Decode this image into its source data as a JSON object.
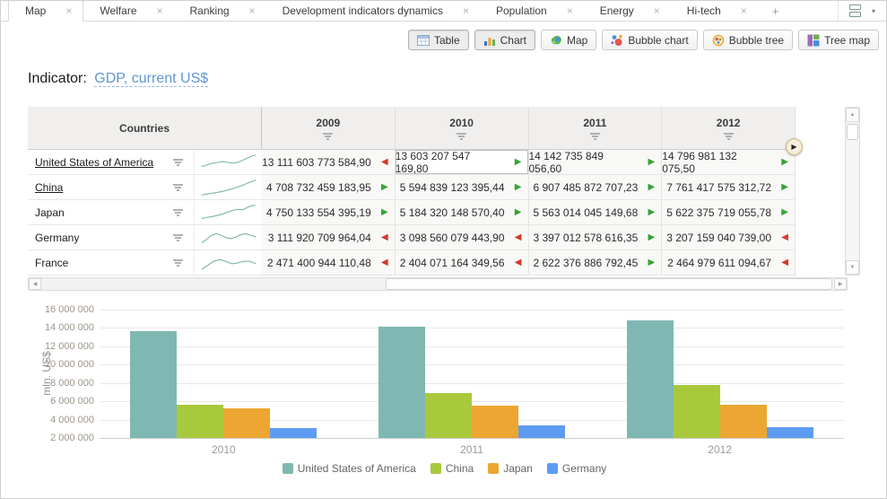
{
  "icons": {
    "close": "×",
    "add": "+",
    "caret": "▾",
    "scroll_up": "▲",
    "scroll_down": "▼",
    "scroll_left": "◀",
    "scroll_right": "▶",
    "trend_up": "▶",
    "trend_down": "◀",
    "expand": "▶"
  },
  "tabs": {
    "items": [
      {
        "label": "Map",
        "active": true
      },
      {
        "label": "Welfare",
        "active": false
      },
      {
        "label": "Ranking",
        "active": false
      },
      {
        "label": "Development indicators dynamics",
        "active": false
      },
      {
        "label": "Population",
        "active": false
      },
      {
        "label": "Energy",
        "active": false
      },
      {
        "label": "Hi-tech",
        "active": false
      }
    ]
  },
  "toolbar": {
    "buttons": [
      {
        "label": "Table",
        "icon": "table-icon",
        "active": true
      },
      {
        "label": "Chart",
        "icon": "chart-icon",
        "active": true
      },
      {
        "label": "Map",
        "icon": "map-icon",
        "active": false
      },
      {
        "label": "Bubble chart",
        "icon": "bubble-chart-icon",
        "active": false
      },
      {
        "label": "Bubble tree",
        "icon": "bubble-tree-icon",
        "active": false
      },
      {
        "label": "Tree map",
        "icon": "tree-map-icon",
        "active": false
      }
    ]
  },
  "header": {
    "indicator_label": "Indicator:",
    "indicator_value": "GDP, current US$"
  },
  "table": {
    "countries_header": "Countries",
    "years": [
      "2009",
      "2010",
      "2011",
      "2012"
    ],
    "selected_cell": {
      "row": 0,
      "year_index": 1
    },
    "rows": [
      {
        "country": "United States of America",
        "underlined": true,
        "spark": [
          17,
          15,
          13,
          12,
          11,
          12,
          13,
          11,
          8,
          5,
          3
        ],
        "values": [
          {
            "text": "13 111 603 773 584,90",
            "trend": "down"
          },
          {
            "text": "13 603 207 547 169,80",
            "trend": "up"
          },
          {
            "text": "14 142 735 849 056,60",
            "trend": "up"
          },
          {
            "text": "14 796 981 132 075,50",
            "trend": "up"
          }
        ]
      },
      {
        "country": "China",
        "underlined": true,
        "spark": [
          21,
          20,
          19,
          18,
          17,
          15.5,
          14,
          12,
          10,
          7.5,
          5,
          3
        ],
        "values": [
          {
            "text": "4 708 732 459 183,95",
            "trend": "up"
          },
          {
            "text": "5 594 839 123 395,44",
            "trend": "up"
          },
          {
            "text": "6 907 485 872 707,23",
            "trend": "up"
          },
          {
            "text": "7 761 417 575 312,72",
            "trend": "up"
          }
        ]
      },
      {
        "country": "Japan",
        "underlined": false,
        "spark": [
          19,
          18,
          17,
          16,
          14.5,
          13,
          11,
          9,
          8,
          8.5,
          6,
          3.5,
          3
        ],
        "values": [
          {
            "text": "4 750 133 554 395,19",
            "trend": "up"
          },
          {
            "text": "5 184 320 148 570,40",
            "trend": "up"
          },
          {
            "text": "5 563 014 045 149,68",
            "trend": "up"
          },
          {
            "text": "5 622 375 719 055,78",
            "trend": "up"
          }
        ]
      },
      {
        "country": "Germany",
        "underlined": false,
        "spark": [
          18,
          14,
          9,
          7,
          9,
          12,
          13,
          11,
          8,
          7,
          9,
          11
        ],
        "values": [
          {
            "text": "3 111 920 709 964,04",
            "trend": "down"
          },
          {
            "text": "3 098 560 079 443,90",
            "trend": "down"
          },
          {
            "text": "3 397 012 578 616,35",
            "trend": "up"
          },
          {
            "text": "3 207 159 040 739,00",
            "trend": "down"
          }
        ]
      },
      {
        "country": "France",
        "underlined": false,
        "spark": [
          20,
          15,
          10,
          8,
          10,
          13,
          12,
          10,
          10,
          13
        ],
        "values": [
          {
            "text": "2 471 400 944 110,48",
            "trend": "down"
          },
          {
            "text": "2 404 071 164 349,56",
            "trend": "down"
          },
          {
            "text": "2 622 376 886 792,45",
            "trend": "up"
          },
          {
            "text": "2 464 979 611 094,67",
            "trend": "down"
          }
        ]
      }
    ]
  },
  "chart_data": {
    "type": "bar",
    "title": "",
    "categories": [
      "2010",
      "2011",
      "2012"
    ],
    "series": [
      {
        "name": "United States of America",
        "color": "#7fb8b2",
        "values": [
          13603207.55,
          14142735.85,
          14796981.13
        ]
      },
      {
        "name": "China",
        "color": "#a9c93d",
        "values": [
          5594839.12,
          6907485.87,
          7761417.58
        ]
      },
      {
        "name": "Japan",
        "color": "#eca631",
        "values": [
          5184320.15,
          5563014.05,
          5622375.72
        ]
      },
      {
        "name": "Germany",
        "color": "#5d9cf2",
        "values": [
          3098560.08,
          3397012.58,
          3207159.04
        ]
      }
    ],
    "unit": "mln US$",
    "xlabel": "",
    "ylabel": "mln. US$",
    "ylim": [
      2000000,
      16000000
    ],
    "yticks": [
      {
        "value": 2000000,
        "label": "2 000 000"
      },
      {
        "value": 4000000,
        "label": "4 000 000"
      },
      {
        "value": 6000000,
        "label": "6 000 000"
      },
      {
        "value": 8000000,
        "label": "8 000 000"
      },
      {
        "value": 10000000,
        "label": "10 000 000"
      },
      {
        "value": 12000000,
        "label": "12 000 000"
      },
      {
        "value": 14000000,
        "label": "14 000 000"
      },
      {
        "value": 16000000,
        "label": "16 000 000"
      }
    ],
    "grid": true,
    "legend_position": "bottom"
  },
  "colors": {
    "accent_link": "#5e96d2",
    "trend_up": "#35a435",
    "trend_down": "#d4372b",
    "sparkline": "#7fb3a4"
  }
}
